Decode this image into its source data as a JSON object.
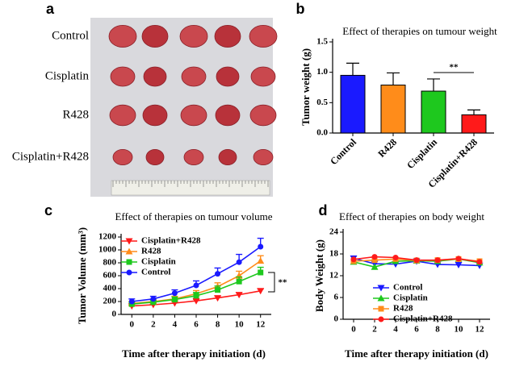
{
  "photo": {
    "panel": "a",
    "rows": [
      "Control",
      "Cisplatin",
      "R428",
      "Cisplatin+R428"
    ]
  },
  "chart_data": [
    {
      "type": "bar",
      "panel": "b",
      "title": "Effect of therapies on tumour weight",
      "ylabel": "Tumor weight (g)",
      "categories": [
        "Control",
        "R428",
        "Cisplatin",
        "Cisplatin+R428"
      ],
      "values": [
        0.95,
        0.79,
        0.69,
        0.3
      ],
      "errors": [
        0.2,
        0.2,
        0.2,
        0.08
      ],
      "colors": [
        "#1a1aff",
        "#ff8c1a",
        "#1ec81e",
        "#ff1a1a"
      ],
      "ylim": [
        0,
        1.5
      ],
      "yticks": [
        {
          "value": 0,
          "label": "0.0"
        },
        {
          "value": 0.5,
          "label": "0.5"
        },
        {
          "value": 1,
          "label": "1.0"
        },
        {
          "value": 1.5,
          "label": "1.5"
        }
      ],
      "annotation": "**"
    },
    {
      "type": "line",
      "panel": "c",
      "title": "Effect of therapies on tumour volume",
      "ylabel": "Tumor Volume (mm³)",
      "xlabel": "Time after therapy initiation (d)",
      "x": [
        0,
        2,
        4,
        6,
        8,
        10,
        12
      ],
      "xlim": [
        -1,
        13
      ],
      "xticks": [
        0,
        2,
        4,
        6,
        8,
        10,
        12
      ],
      "ylim": [
        0,
        1200
      ],
      "yticks": [
        0,
        200,
        400,
        600,
        800,
        1000,
        1200
      ],
      "legend": "upper left",
      "annotation": "**",
      "series": [
        {
          "name": "Cisplatin+R428",
          "color": "#ff1a1a",
          "marker": "triangle-down",
          "values": [
            130,
            150,
            175,
            210,
            255,
            305,
            365
          ],
          "errors": [
            20,
            20,
            25,
            25,
            30,
            30,
            30
          ]
        },
        {
          "name": "R428",
          "color": "#ff8c1a",
          "marker": "triangle-up",
          "values": [
            170,
            200,
            240,
            320,
            430,
            600,
            830
          ],
          "errors": [
            30,
            30,
            40,
            50,
            60,
            70,
            80
          ]
        },
        {
          "name": "Cisplatin",
          "color": "#1ec81e",
          "marker": "square",
          "values": [
            160,
            190,
            230,
            290,
            380,
            510,
            650
          ],
          "errors": [
            30,
            30,
            40,
            50,
            60,
            70,
            80
          ]
        },
        {
          "name": "Control",
          "color": "#1a1aff",
          "marker": "circle",
          "values": [
            200,
            240,
            330,
            450,
            630,
            810,
            1050
          ],
          "errors": [
            40,
            40,
            50,
            70,
            90,
            120,
            130
          ]
        }
      ]
    },
    {
      "type": "line",
      "panel": "d",
      "title": "Effect of therapies on body weight",
      "ylabel": "Body Weight (g)",
      "xlabel": "Time after therapy initiation (d)",
      "x": [
        0,
        2,
        4,
        6,
        8,
        10,
        12
      ],
      "xlim": [
        -1,
        13
      ],
      "xticks": [
        0,
        2,
        4,
        6,
        8,
        10,
        12
      ],
      "ylim": [
        0,
        24
      ],
      "yticks": [
        0,
        6,
        12,
        18,
        24
      ],
      "legend": "lower right",
      "series": [
        {
          "name": "Control",
          "color": "#1a1aff",
          "marker": "triangle-down",
          "values": [
            16.8,
            15.3,
            15.2,
            16.0,
            15.1,
            15.0,
            14.8
          ]
        },
        {
          "name": "Cisplatin",
          "color": "#1ec81e",
          "marker": "triangle-up",
          "values": [
            15.8,
            14.4,
            16.0,
            16.1,
            16.0,
            16.6,
            15.6
          ]
        },
        {
          "name": "R428",
          "color": "#ff8c1a",
          "marker": "square",
          "values": [
            16.0,
            16.3,
            16.6,
            16.2,
            16.3,
            16.6,
            16.0
          ]
        },
        {
          "name": "Cisplatin+R428",
          "color": "#ff1a1a",
          "marker": "circle",
          "values": [
            16.5,
            17.2,
            17.0,
            16.3,
            16.3,
            16.7,
            15.8
          ]
        }
      ]
    }
  ]
}
